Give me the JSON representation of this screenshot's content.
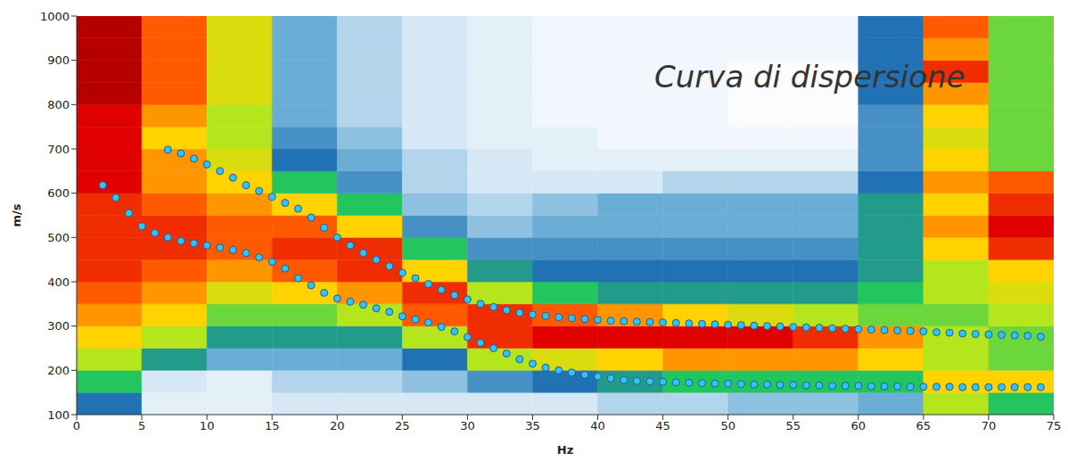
{
  "chart_data": {
    "type": "scatter",
    "annotation": "Curva di dispersione",
    "x_label": "Hz",
    "y_label": "m/s",
    "xlim": [
      0,
      75
    ],
    "ylim": [
      100,
      1000
    ],
    "xticks": [
      0,
      5,
      10,
      15,
      20,
      25,
      30,
      35,
      40,
      45,
      50,
      55,
      60,
      65,
      70,
      75
    ],
    "yticks": [
      100,
      200,
      300,
      400,
      500,
      600,
      700,
      800,
      900,
      1000
    ],
    "grid": false,
    "heatmap": {
      "x_edges": [
        0,
        5,
        10,
        15,
        20,
        25,
        30,
        35,
        40,
        45,
        50,
        55,
        60,
        65,
        70,
        75
      ],
      "y_edges": [
        100,
        150,
        200,
        250,
        300,
        350,
        400,
        450,
        500,
        550,
        600,
        650,
        700,
        750,
        800,
        850,
        900,
        950,
        1000
      ],
      "zlim": [
        0,
        1
      ],
      "z": [
        [
          0.4,
          0.5,
          0.6,
          0.7,
          0.75,
          0.8,
          0.85,
          0.85,
          0.85,
          0.85,
          0.9,
          0.9,
          0.9,
          0.9,
          0.95,
          0.95,
          0.95,
          0.95
        ],
        [
          0.1,
          0.15,
          0.45,
          0.6,
          0.7,
          0.75,
          0.8,
          0.85,
          0.85,
          0.8,
          0.75,
          0.75,
          0.7,
          0.75,
          0.8,
          0.8,
          0.8,
          0.8
        ],
        [
          0.1,
          0.1,
          0.3,
          0.45,
          0.55,
          0.65,
          0.75,
          0.8,
          0.8,
          0.75,
          0.7,
          0.65,
          0.6,
          0.6,
          0.65,
          0.65,
          0.65,
          0.65
        ],
        [
          0.15,
          0.2,
          0.3,
          0.45,
          0.55,
          0.7,
          0.8,
          0.85,
          0.8,
          0.7,
          0.5,
          0.4,
          0.35,
          0.3,
          0.3,
          0.3,
          0.3,
          0.3
        ],
        [
          0.15,
          0.2,
          0.3,
          0.45,
          0.6,
          0.75,
          0.85,
          0.85,
          0.7,
          0.5,
          0.35,
          0.3,
          0.25,
          0.2,
          0.2,
          0.2,
          0.2,
          0.2
        ],
        [
          0.15,
          0.25,
          0.4,
          0.6,
          0.8,
          0.85,
          0.7,
          0.5,
          0.35,
          0.25,
          0.2,
          0.2,
          0.15,
          0.15,
          0.15,
          0.15,
          0.15,
          0.15
        ],
        [
          0.15,
          0.35,
          0.6,
          0.85,
          0.85,
          0.6,
          0.45,
          0.35,
          0.25,
          0.2,
          0.15,
          0.15,
          0.1,
          0.1,
          0.1,
          0.1,
          0.1,
          0.1
        ],
        [
          0.15,
          0.4,
          0.65,
          0.9,
          0.8,
          0.5,
          0.4,
          0.35,
          0.3,
          0.25,
          0.15,
          0.1,
          0.1,
          0.05,
          0.05,
          0.05,
          0.05,
          0.05
        ],
        [
          0.2,
          0.45,
          0.7,
          0.9,
          0.75,
          0.45,
          0.4,
          0.35,
          0.3,
          0.3,
          0.15,
          0.1,
          0.05,
          0.05,
          0.05,
          0.05,
          0.05,
          0.05
        ],
        [
          0.2,
          0.5,
          0.75,
          0.9,
          0.7,
          0.45,
          0.4,
          0.35,
          0.3,
          0.3,
          0.2,
          0.1,
          0.05,
          0.05,
          0.05,
          0.05,
          0.05,
          0.05
        ],
        [
          0.25,
          0.5,
          0.75,
          0.9,
          0.65,
          0.45,
          0.4,
          0.35,
          0.3,
          0.3,
          0.2,
          0.1,
          0.05,
          0.02,
          0.02,
          0.02,
          0.05,
          0.05
        ],
        [
          0.25,
          0.5,
          0.75,
          0.85,
          0.6,
          0.45,
          0.4,
          0.35,
          0.3,
          0.3,
          0.2,
          0.1,
          0.05,
          0.02,
          0.02,
          0.02,
          0.05,
          0.05
        ],
        [
          0.3,
          0.5,
          0.7,
          0.75,
          0.55,
          0.5,
          0.45,
          0.45,
          0.45,
          0.45,
          0.4,
          0.35,
          0.35,
          0.35,
          0.4,
          0.4,
          0.4,
          0.4
        ],
        [
          0.6,
          0.7,
          0.6,
          0.6,
          0.55,
          0.6,
          0.6,
          0.7,
          0.75,
          0.7,
          0.75,
          0.7,
          0.65,
          0.7,
          0.75,
          0.85,
          0.75,
          0.8
        ],
        [
          0.5,
          0.7,
          0.55,
          0.55,
          0.6,
          0.65,
          0.7,
          0.85,
          0.9,
          0.85,
          0.8,
          0.55,
          0.55,
          0.55,
          0.55,
          0.55,
          0.55,
          0.55
        ]
      ]
    },
    "series": [
      {
        "color": "#33c3f0",
        "marker": "circle",
        "x": [
          7,
          8,
          9,
          10,
          11,
          12,
          13,
          14,
          15,
          16,
          17,
          18,
          19,
          20,
          21,
          22,
          23,
          24,
          25,
          26,
          27,
          28,
          29,
          30,
          31,
          32,
          33,
          34,
          35,
          36,
          37,
          38,
          39,
          40,
          41,
          42,
          43,
          44,
          45,
          46,
          47,
          48,
          49,
          50,
          51,
          52,
          53,
          54,
          55,
          56,
          57,
          58,
          59,
          60,
          61,
          62,
          63,
          64,
          65,
          66,
          67,
          68,
          69,
          70,
          71,
          72,
          73,
          74
        ],
        "values": [
          698,
          690,
          678,
          665,
          650,
          635,
          618,
          605,
          592,
          578,
          565,
          545,
          522,
          500,
          482,
          465,
          450,
          435,
          420,
          408,
          395,
          382,
          370,
          360,
          350,
          343,
          336,
          330,
          326,
          323,
          320,
          318,
          316,
          314,
          312,
          311,
          310,
          309,
          308,
          307,
          306,
          305,
          304,
          303,
          302,
          301,
          300,
          299,
          298,
          297,
          296,
          295,
          294,
          293,
          292,
          291,
          290,
          289,
          288,
          286,
          285,
          283,
          282,
          281,
          280,
          279,
          278,
          276
        ]
      },
      {
        "color": "#33c3f0",
        "marker": "circle",
        "x": [
          2,
          3,
          4,
          5,
          6,
          7,
          8,
          9,
          10,
          11,
          12,
          13,
          14,
          15,
          16,
          17,
          18,
          19,
          20,
          21,
          22,
          23,
          24,
          25,
          26,
          27,
          28,
          29,
          30,
          31,
          32,
          33,
          34,
          35,
          36,
          37,
          38,
          39,
          40,
          41,
          42,
          43,
          44,
          45,
          46,
          47,
          48,
          49,
          50,
          51,
          52,
          53,
          54,
          55,
          56,
          57,
          58,
          59,
          60,
          61,
          62,
          63,
          64,
          65,
          66,
          67,
          68,
          69,
          70,
          71,
          72,
          73,
          74
        ],
        "values": [
          618,
          590,
          555,
          525,
          510,
          500,
          492,
          487,
          482,
          477,
          472,
          465,
          455,
          445,
          430,
          408,
          392,
          375,
          362,
          355,
          348,
          340,
          332,
          322,
          315,
          308,
          298,
          288,
          275,
          262,
          250,
          238,
          225,
          215,
          206,
          200,
          195,
          190,
          186,
          182,
          178,
          176,
          175,
          174,
          173,
          172,
          171,
          170,
          170,
          169,
          168,
          168,
          167,
          167,
          166,
          166,
          165,
          165,
          165,
          164,
          164,
          164,
          163,
          163,
          163,
          163,
          162,
          162,
          162,
          162,
          162,
          162,
          162
        ]
      }
    ]
  }
}
